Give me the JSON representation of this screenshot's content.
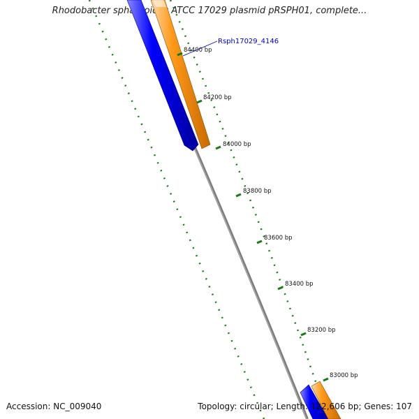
{
  "title": "Rhodobacter sphaeroides ATCC 17029 plasmid pRSPH01, complete...",
  "footer": {
    "accession": "Accession: NC_009040",
    "summary": "Topology: circular; Length: 122,606 bp; Genes: 107"
  },
  "gene_labels": [
    {
      "text": "Rsph17029_4146",
      "color": "#0000cc"
    }
  ],
  "scale_labels": [
    "84400 bp",
    "84200 bp",
    "84000 bp",
    "83800 bp",
    "83600 bp",
    "83400 bp",
    "83200 bp",
    "83000 bp"
  ],
  "colors": {
    "backbone": "#808080",
    "forward_feature": "#ff8c00",
    "reverse_feature": "#0000ee",
    "ticks": "#1a7a1a",
    "gene_label": "#0000cc"
  }
}
